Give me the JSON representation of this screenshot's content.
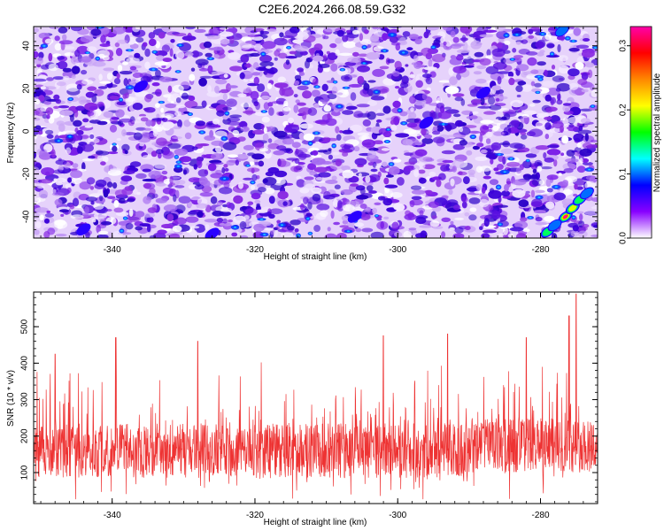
{
  "title": "C2E6.2024.266.08.59.G32",
  "chart_data": [
    {
      "type": "heatmap",
      "xlabel": "Height of straight line (km)",
      "ylabel": "Frequency (Hz)",
      "xlim": [
        -351,
        -272
      ],
      "ylim": [
        -50,
        49
      ],
      "xticks": [
        -340,
        -320,
        -300,
        -280
      ],
      "yticks": [
        -40,
        -20,
        0,
        20,
        40
      ],
      "colorbar": {
        "label": "Normalized spectral amplitude",
        "range": [
          0.0,
          0.33
        ],
        "ticks": [
          0.0,
          0.1,
          0.2,
          0.3
        ],
        "colors": [
          "#ffffff",
          "#8800ff",
          "#0000ff",
          "#00ffff",
          "#00ff00",
          "#ffff00",
          "#ff8800",
          "#ff0000",
          "#ff00aa"
        ]
      },
      "background_level": "speckled noise 0.0-0.10",
      "hotspots": [
        {
          "x": -276.5,
          "y": -40,
          "value": 0.33
        },
        {
          "x": -275.5,
          "y": -36,
          "value": 0.2
        },
        {
          "x": -274.5,
          "y": -32,
          "value": 0.15
        },
        {
          "x": -273.5,
          "y": -29,
          "value": 0.12
        },
        {
          "x": -279,
          "y": -47,
          "value": 0.15
        },
        {
          "x": -278,
          "y": -44,
          "value": 0.12
        },
        {
          "x": -277,
          "y": 47,
          "value": 0.12
        },
        {
          "x": -296,
          "y": 4,
          "value": 0.09
        },
        {
          "x": -306,
          "y": -40,
          "value": 0.08
        },
        {
          "x": -344,
          "y": -46,
          "value": 0.07
        },
        {
          "x": -326,
          "y": -48,
          "value": 0.07
        },
        {
          "x": -336,
          "y": 21,
          "value": 0.07
        },
        {
          "x": -288,
          "y": 18,
          "value": 0.07
        }
      ]
    },
    {
      "type": "line",
      "xlabel": "Height of straight line (km)",
      "ylabel": "SNR (10 * v/v)",
      "xlim": [
        -351,
        -272
      ],
      "ylim": [
        15,
        595
      ],
      "xticks": [
        -340,
        -320,
        -300,
        -280
      ],
      "yticks": [
        100,
        200,
        300,
        400,
        500
      ],
      "color": "#ee3333",
      "description_baseline": 160,
      "peaks": [
        {
          "x": -275,
          "y": 590
        },
        {
          "x": -276,
          "y": 530
        },
        {
          "x": -339.5,
          "y": 470
        },
        {
          "x": -302,
          "y": 475
        },
        {
          "x": -293,
          "y": 480
        },
        {
          "x": -328,
          "y": 460
        },
        {
          "x": -282,
          "y": 470
        },
        {
          "x": -348,
          "y": 425
        }
      ]
    }
  ]
}
